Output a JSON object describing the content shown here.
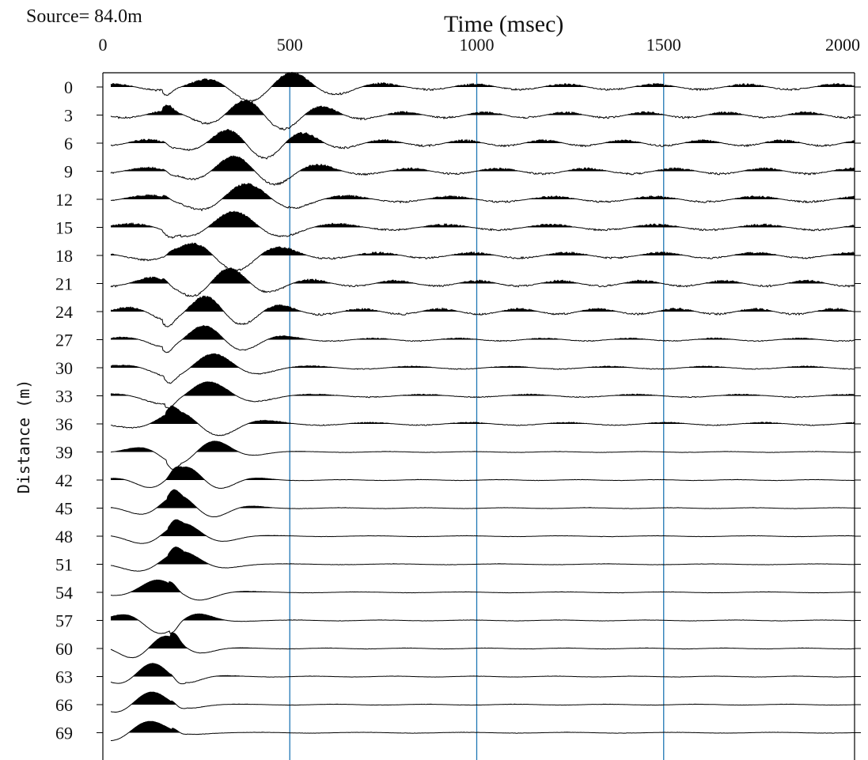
{
  "source_label": "Source= 84.0m",
  "chart_data": {
    "type": "seismic-wiggle",
    "title": "Source= 84.0m",
    "xlabel": "Time (msec)",
    "ylabel": "Distance (m)",
    "xlim": [
      0,
      2000
    ],
    "x_ticks": [
      0,
      500,
      1000,
      1500,
      2000
    ],
    "ylim": [
      0,
      69
    ],
    "traces": [
      0,
      3,
      6,
      9,
      12,
      15,
      18,
      21,
      24,
      27,
      30,
      33,
      36,
      39,
      42,
      45,
      48,
      51,
      54,
      57,
      60,
      63,
      66,
      69
    ],
    "vertical_gridlines_ms": [
      500,
      1000,
      1500
    ],
    "gridline_color": "#1f77b4",
    "trace_color": "#000000",
    "fill": "positive peaks filled black",
    "approx_first_arrival_ms": [
      520,
      500,
      480,
      460,
      440,
      420,
      400,
      380,
      370,
      360,
      345,
      335,
      320,
      310,
      295,
      285,
      270,
      260,
      245,
      230,
      215,
      200,
      180,
      160
    ]
  }
}
